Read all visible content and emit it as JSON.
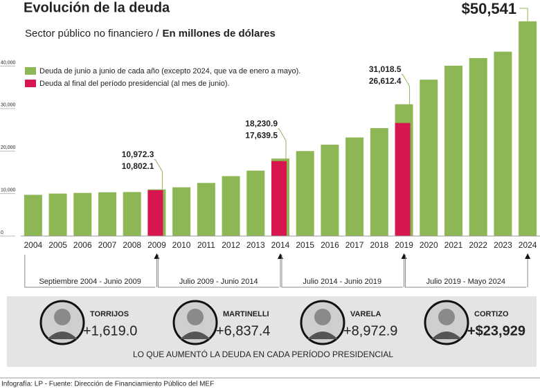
{
  "chart_data": {
    "type": "bar",
    "title": "Evolución de la deuda",
    "subtitle": "Sector público no financiero /",
    "units": "En millones de dólares",
    "categories": [
      "2004",
      "2005",
      "2006",
      "2007",
      "2008",
      "2009",
      "2010",
      "2011",
      "2012",
      "2013",
      "2014",
      "2015",
      "2016",
      "2017",
      "2018",
      "2019",
      "2020",
      "2021",
      "2022",
      "2023",
      "2024"
    ],
    "series": [
      {
        "name": "Deuda de junio a junio de cada año (excepto 2024, que va de enero a mayo).",
        "color": "#8cb754",
        "values": [
          9700,
          10000,
          10150,
          10300,
          10350,
          10972.3,
          11470,
          12500,
          14100,
          15400,
          18230.9,
          20000,
          21500,
          23200,
          25400,
          31018.5,
          36800,
          40100,
          41900,
          43400,
          50541
        ],
        "value_labels": [
          null,
          null,
          null,
          null,
          null,
          "10,972.3",
          null,
          null,
          null,
          null,
          "18,230.9",
          null,
          null,
          null,
          null,
          "31,018.5",
          null,
          null,
          null,
          null,
          "$50,541"
        ]
      },
      {
        "name": "Deuda al final del período presidencial (al mes de junio).",
        "color": "#d7164f",
        "values": [
          null,
          null,
          null,
          null,
          null,
          10802.1,
          null,
          null,
          null,
          null,
          17639.5,
          null,
          null,
          null,
          null,
          26612.4,
          null,
          null,
          null,
          null,
          null
        ],
        "value_labels": [
          null,
          null,
          null,
          null,
          null,
          "10,802.1",
          null,
          null,
          null,
          null,
          "17,639.5",
          null,
          null,
          null,
          null,
          "26,612.4",
          null,
          null,
          null,
          null,
          null
        ]
      }
    ],
    "ylim": [
      0,
      51000
    ],
    "yticks": [
      0,
      {
        "value": 10000,
        "label": "10,000"
      },
      {
        "value": 20000,
        "label": "20,000"
      },
      {
        "value": 30000,
        "label": "30,000"
      },
      {
        "value": 40000,
        "label": "40,000"
      }
    ],
    "periods": [
      "Septiembre 2004 - Junio 2009",
      "Julio 2009 - Junio 2014",
      "Julio 2014 - Junio 2019",
      "Julio 2019 - Mayo 2024"
    ]
  },
  "presidents": [
    {
      "name": "TORRIJOS",
      "increase": "+1,619.0"
    },
    {
      "name": "MARTINELLI",
      "increase": "+6,837.4"
    },
    {
      "name": "VARELA",
      "increase": "+8,972.9"
    },
    {
      "name": "CORTIZO",
      "increase": "+$23,929"
    }
  ],
  "caption": "LO QUE AUMENTÓ LA DEUDA EN CADA PERÍODO PRESIDENCIAL",
  "footer": "Infografía: LP - Fuente: Dirección de Financiamiento Público del MEF"
}
